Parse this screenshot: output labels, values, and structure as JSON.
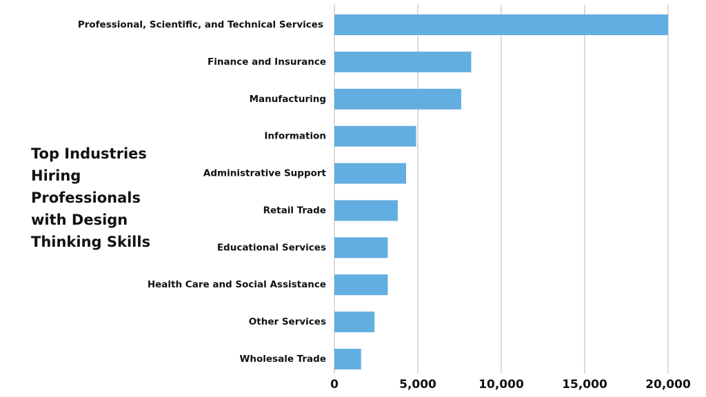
{
  "chart_data": {
    "type": "bar",
    "orientation": "horizontal",
    "title": "Top Industries Hiring Professionals with Design Thinking Skills",
    "categories": [
      "Professional, Scientific, and Technical Services",
      "Finance and Insurance",
      "Manufacturing",
      "Information",
      "Administrative Support",
      "Retail Trade",
      "Educational Services",
      "Health Care and Social Assistance",
      "Other Services",
      "Wholesale Trade"
    ],
    "values": [
      20000,
      8200,
      7600,
      4900,
      4300,
      3800,
      3200,
      3200,
      2400,
      1600
    ],
    "color": "#63aee0",
    "xlim": [
      0,
      20000
    ],
    "xticks": [
      0,
      {
        "value": 5000,
        "label": "5,000"
      },
      {
        "value": 10000,
        "label": "10,000"
      },
      {
        "value": 15000,
        "label": "15,000"
      },
      {
        "value": 20000,
        "label": "20,000"
      }
    ],
    "grid": true
  }
}
